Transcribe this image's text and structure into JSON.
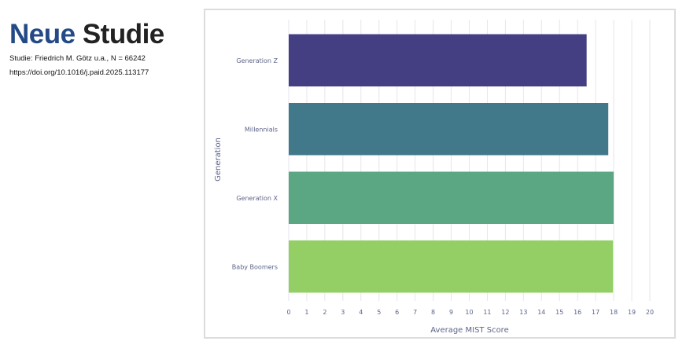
{
  "header": {
    "title_word1": "Neue",
    "title_word2": "Studie",
    "source_line": "Studie: Friedrich M. Götz u.a., N = 66242",
    "doi_line": "https://doi.org/10.1016/j.paid.2025.113177"
  },
  "chart_data": {
    "type": "bar",
    "orientation": "horizontal",
    "categories": [
      "Generation Z",
      "Millennials",
      "Generation X",
      "Baby Boomers"
    ],
    "values": [
      16.5,
      17.7,
      18.0,
      17.96
    ],
    "colors": [
      "#443f82",
      "#41788a",
      "#5ba783",
      "#93cf65"
    ],
    "xlabel": "Average MIST Score",
    "ylabel": "Generation",
    "xlim": [
      0,
      20
    ],
    "xticks": [
      "0",
      "1",
      "2",
      "3",
      "4",
      "5",
      "6",
      "7",
      "8",
      "9",
      "10",
      "11",
      "12",
      "13",
      "14",
      "15",
      "16",
      "17",
      "18",
      "19",
      "20"
    ],
    "grid": "vertical",
    "legend": "none"
  }
}
